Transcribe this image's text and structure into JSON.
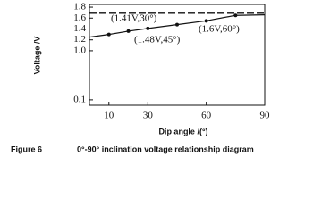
{
  "chart_data": {
    "type": "line",
    "y_label": "Voltage /V",
    "x_label": "Dip angle /(°)",
    "caption_number": "Figure 6",
    "caption": "0°-90° inclination voltage relationship diagram",
    "annotations": [
      "(1.41V,30°)",
      "(1.48V,45°)",
      "(1.6V,60°)"
    ],
    "x": [
      0,
      10,
      20,
      30,
      45,
      60,
      75,
      90
    ],
    "series": [
      {
        "color": "#111111",
        "values": [
          1.25,
          1.3,
          1.36,
          1.41,
          1.48,
          1.55,
          1.65,
          1.66
        ]
      },
      {
        "color": "#111111",
        "dashed": true,
        "values": [
          1.69,
          1.69,
          1.69,
          1.69,
          1.69,
          1.69,
          1.69,
          1.69
        ]
      }
    ],
    "xlim": [
      0,
      90
    ],
    "xticks": [
      10,
      30,
      60,
      90
    ],
    "ylim": [
      0,
      1.85
    ],
    "yticks": [
      0.1,
      {
        "value": 1,
        "label": "1.0"
      },
      1.2,
      1.4,
      1.6,
      1.8
    ]
  }
}
